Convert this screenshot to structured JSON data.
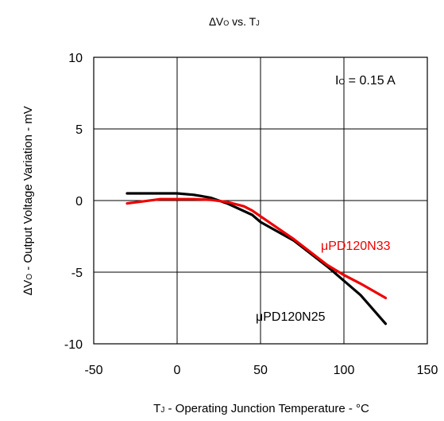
{
  "chart_data": {
    "type": "line",
    "title": {
      "delta": "∆",
      "v": "V",
      "v_sub": "O",
      "mid": " vs. T",
      "t_sub": "J"
    },
    "xlabel": {
      "t": "T",
      "t_sub": "J",
      "rest": " - Operating Junction Temperature - °C"
    },
    "ylabel": {
      "delta": "∆",
      "v": "V",
      "v_sub": "O",
      "rest": " - Output Voltage Variation - mV"
    },
    "xlim": [
      -50,
      150
    ],
    "ylim": [
      -10,
      10
    ],
    "x_ticks": [
      -50,
      0,
      50,
      100,
      150
    ],
    "y_ticks": [
      -10,
      -5,
      0,
      5,
      10
    ],
    "x_tick_labels": [
      "-50",
      "0",
      "50",
      "100",
      "150"
    ],
    "y_tick_labels": [
      "-10",
      "-5",
      "0",
      "5",
      "10"
    ],
    "grid": true,
    "annotation": {
      "i": "I",
      "i_sub": "O",
      "rest": " = 0.15 A"
    },
    "series": [
      {
        "name": "μPD120N25",
        "color": "#000000",
        "x": [
          -30,
          -10,
          0,
          10,
          20,
          25,
          30,
          45,
          50,
          70,
          90,
          110,
          125
        ],
        "y": [
          0.5,
          0.5,
          0.5,
          0.4,
          0.2,
          0.0,
          -0.2,
          -1.0,
          -1.5,
          -2.8,
          -4.6,
          -6.6,
          -8.6
        ]
      },
      {
        "name": "μPD120N33",
        "color": "#ee0000",
        "x": [
          -30,
          -20,
          -10,
          0,
          10,
          20,
          30,
          40,
          45,
          50,
          70,
          90,
          100,
          110,
          125
        ],
        "y": [
          -0.2,
          -0.05,
          0.1,
          0.1,
          0.1,
          0.05,
          -0.1,
          -0.4,
          -0.7,
          -1.1,
          -2.7,
          -4.5,
          -5.2,
          -5.8,
          -6.8
        ]
      }
    ]
  }
}
